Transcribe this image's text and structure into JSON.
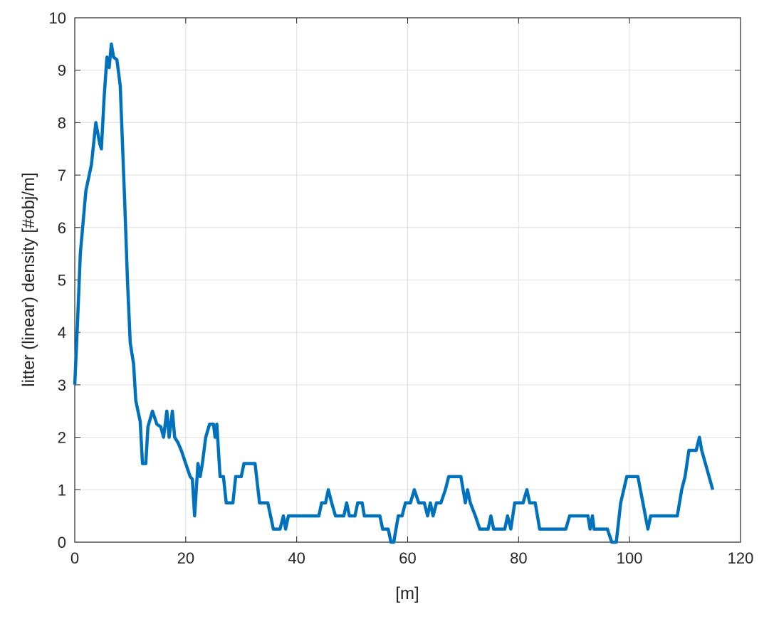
{
  "chart_data": {
    "type": "line",
    "title": "",
    "xlabel": "[m]",
    "ylabel": "litter (linear) density [#obj/m]",
    "xlim": [
      0,
      120
    ],
    "ylim": [
      0,
      10
    ],
    "xticks": [
      0,
      20,
      40,
      60,
      80,
      100,
      120
    ],
    "yticks": [
      0,
      1,
      2,
      3,
      4,
      5,
      6,
      7,
      8,
      9,
      10
    ],
    "grid": true,
    "line_color": "#0072BD",
    "x": [
      0,
      0.5,
      1,
      2,
      3,
      3.8,
      4.5,
      4.8,
      5.3,
      5.8,
      6.2,
      6.6,
      7,
      7.6,
      8.2,
      9,
      9.5,
      10,
      10.6,
      11,
      11.8,
      12.2,
      12.8,
      13.2,
      14,
      14.8,
      15.5,
      16,
      16.6,
      17,
      17.6,
      18,
      18.6,
      19.2,
      20,
      20.8,
      21.2,
      21.6,
      22.2,
      22.6,
      23,
      23.6,
      24.3,
      25,
      25.3,
      25.6,
      26.2,
      26.8,
      27.3,
      28.5,
      29,
      30,
      30.5,
      32.5,
      33.3,
      34.8,
      35.8,
      37,
      37.6,
      38,
      38.5,
      39,
      44,
      44.5,
      45.2,
      45.7,
      46.3,
      47,
      48.5,
      49,
      49.5,
      50.5,
      51,
      51.8,
      52.2,
      55,
      55.5,
      56.5,
      57,
      57.5,
      58.3,
      59,
      59.6,
      60.5,
      61.2,
      62,
      63,
      63.6,
      64.1,
      64.6,
      65.2,
      66,
      66.8,
      67.4,
      69.6,
      70.4,
      70.8,
      71.3,
      72.2,
      73,
      74.5,
      75,
      75.5,
      77.5,
      78,
      78.6,
      79.3,
      80.8,
      81.5,
      82,
      83,
      83.8,
      88.5,
      89.2,
      92.5,
      92.9,
      93.3,
      93.6,
      96,
      96.8,
      97.6,
      98.4,
      99.5,
      101.5,
      102.4,
      103.3,
      103.8,
      108.6,
      109.4,
      110,
      110.7,
      112,
      112.6,
      113,
      115
    ],
    "y": [
      3.0,
      4.2,
      5.5,
      6.7,
      7.2,
      8.0,
      7.6,
      7.5,
      8.5,
      9.25,
      9.05,
      9.5,
      9.25,
      9.2,
      8.7,
      6.5,
      5.0,
      3.8,
      3.4,
      2.7,
      2.3,
      1.5,
      1.5,
      2.2,
      2.5,
      2.25,
      2.2,
      2.0,
      2.5,
      2.0,
      2.5,
      2.0,
      1.9,
      1.75,
      1.5,
      1.25,
      1.2,
      0.5,
      1.5,
      1.25,
      1.5,
      2.0,
      2.25,
      2.25,
      2.0,
      2.25,
      1.25,
      1.25,
      0.75,
      0.75,
      1.25,
      1.25,
      1.5,
      1.5,
      0.75,
      0.75,
      0.25,
      0.25,
      0.5,
      0.25,
      0.5,
      0.5,
      0.5,
      0.75,
      0.75,
      1.0,
      0.75,
      0.5,
      0.5,
      0.75,
      0.5,
      0.5,
      0.75,
      0.75,
      0.5,
      0.5,
      0.25,
      0.25,
      0.0,
      0.0,
      0.5,
      0.5,
      0.75,
      0.75,
      1.0,
      0.75,
      0.75,
      0.5,
      0.75,
      0.5,
      0.75,
      0.75,
      1.0,
      1.25,
      1.25,
      0.75,
      1.0,
      0.75,
      0.5,
      0.25,
      0.25,
      0.5,
      0.25,
      0.25,
      0.5,
      0.25,
      0.75,
      0.75,
      1.0,
      0.75,
      0.75,
      0.25,
      0.25,
      0.5,
      0.5,
      0.25,
      0.5,
      0.25,
      0.25,
      0.0,
      0.0,
      0.75,
      1.25,
      1.25,
      0.75,
      0.25,
      0.5,
      0.5,
      1.0,
      1.25,
      1.75,
      1.75,
      2.0,
      1.75,
      1.0
    ]
  }
}
